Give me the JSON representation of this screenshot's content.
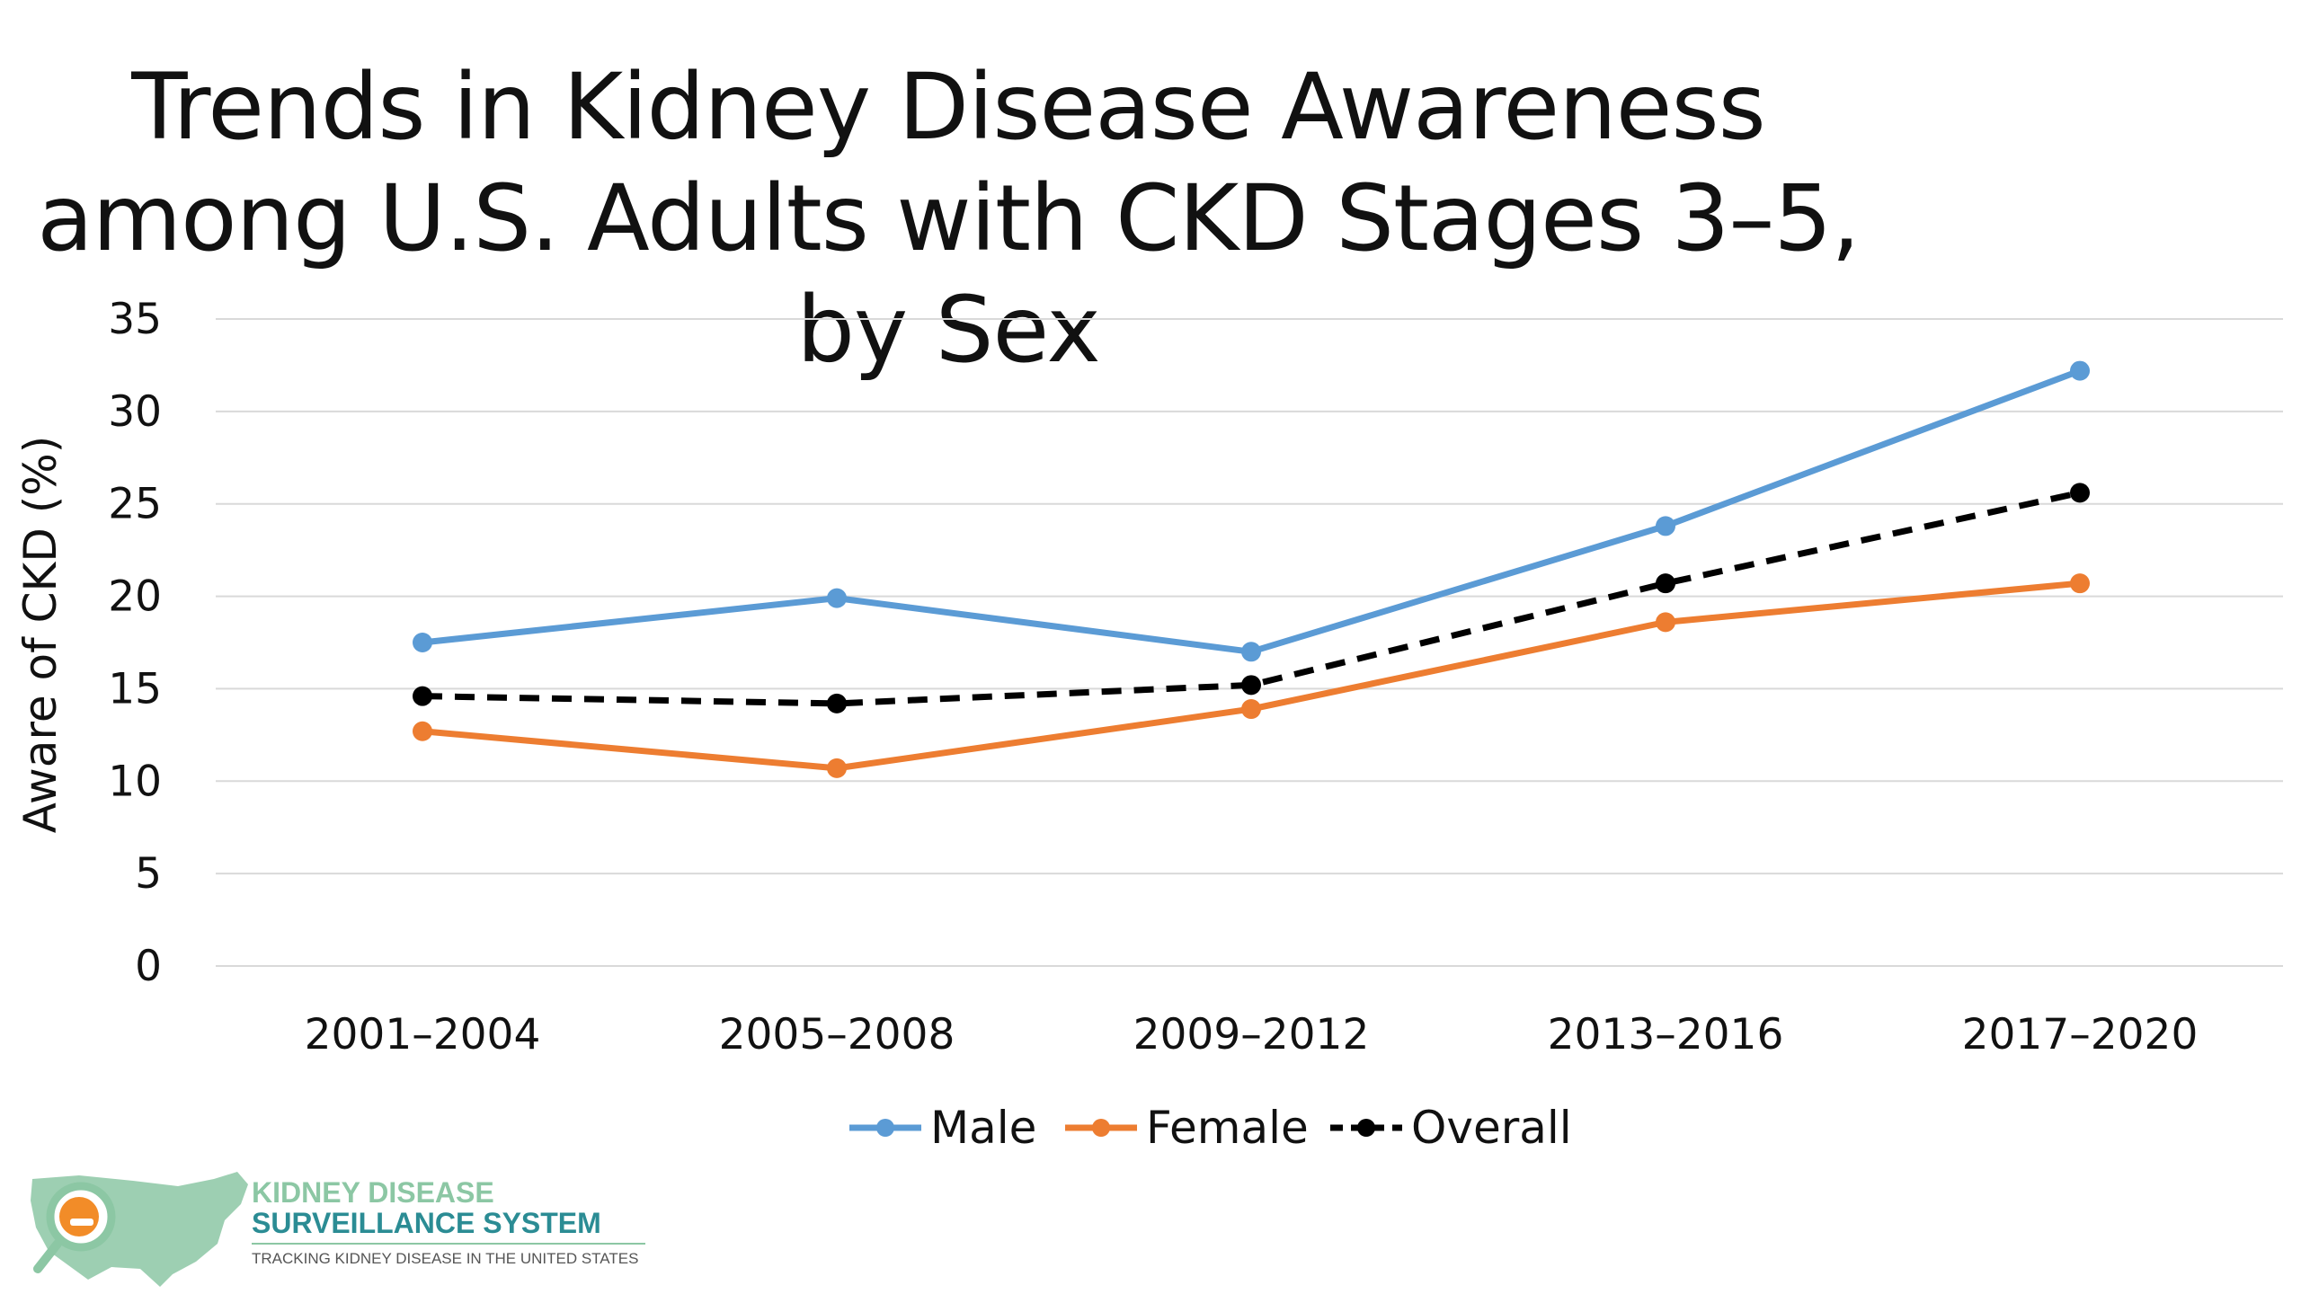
{
  "chart_data": {
    "type": "line",
    "title": "Trends in Kidney Disease Awareness among U.S. Adults with CKD Stages 3–5, by Sex",
    "xlabel": "",
    "ylabel": "Aware of CKD (%)",
    "categories": [
      "2001–2004",
      "2005–2008",
      "2009–2012",
      "2013–2016",
      "2017–2020"
    ],
    "ylim": [
      0,
      35
    ],
    "yticks": [
      "0",
      "5",
      "10",
      "15",
      "20",
      "25",
      "30",
      "35"
    ],
    "grid": true,
    "legend_position": "bottom",
    "series": [
      {
        "name": "Male",
        "values": [
          17.5,
          19.9,
          17.0,
          23.8,
          32.2
        ],
        "color": "#5B9BD5",
        "style": "solid"
      },
      {
        "name": "Female",
        "values": [
          12.7,
          10.7,
          13.9,
          18.6,
          20.7
        ],
        "color": "#ED7D31",
        "style": "solid"
      },
      {
        "name": "Overall",
        "values": [
          14.6,
          14.2,
          15.2,
          20.7,
          25.6
        ],
        "color": "#000000",
        "style": "dashed"
      }
    ]
  },
  "logo": {
    "line1": "KIDNEY DISEASE",
    "line2": "SURVEILLANCE SYSTEM",
    "line3": "TRACKING KIDNEY DISEASE IN THE UNITED STATES",
    "color_primary": "#2B8C94",
    "color_map": "#8CC7A4",
    "color_accent": "#F28C28"
  }
}
